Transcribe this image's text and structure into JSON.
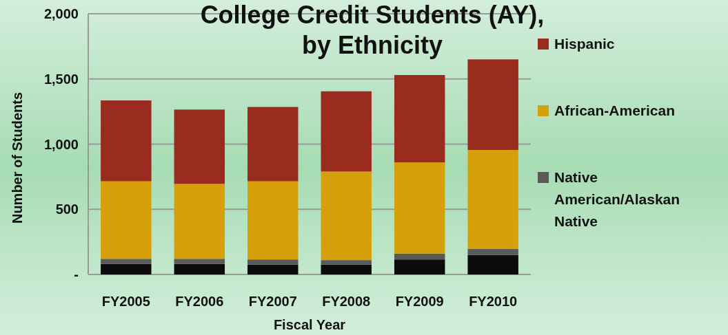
{
  "chart_data": {
    "type": "bar",
    "title": "College Credit Students (AY),\nby Ethnicity",
    "xlabel": "Fiscal Year",
    "ylabel": "Number of Students",
    "categories": [
      "FY2005",
      "FY2006",
      "FY2007",
      "FY2008",
      "FY2009",
      "FY2010"
    ],
    "stacked": true,
    "series": [
      {
        "color": "#0b0b0b",
        "values": [
          80,
          80,
          75,
          75,
          115,
          150
        ]
      },
      {
        "name": "Native American/Alaskan Native",
        "color": "#5a5a5a",
        "values": [
          40,
          40,
          40,
          35,
          45,
          45
        ]
      },
      {
        "name": "African-American",
        "color": "#d6a00b",
        "values": [
          595,
          575,
          600,
          680,
          700,
          760
        ]
      },
      {
        "name": "Hispanic",
        "color": "#9a2b1f",
        "values": [
          620,
          570,
          570,
          615,
          670,
          695
        ]
      }
    ],
    "ylim": [
      0,
      2000
    ],
    "yticks": [
      {
        "value": 0,
        "label": "-"
      },
      {
        "value": 500,
        "label": "500"
      },
      {
        "value": 1000,
        "label": "1,000"
      },
      {
        "value": 1500,
        "label": "1,500"
      },
      {
        "value": 2000,
        "label": "2,000"
      }
    ],
    "grid": "y",
    "legend": "right"
  }
}
